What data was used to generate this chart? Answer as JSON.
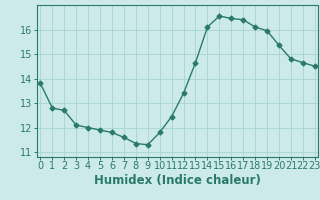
{
  "x": [
    0,
    1,
    2,
    3,
    4,
    5,
    6,
    7,
    8,
    9,
    10,
    11,
    12,
    13,
    14,
    15,
    16,
    17,
    18,
    19,
    20,
    21,
    22,
    23
  ],
  "y": [
    13.8,
    12.8,
    12.7,
    12.1,
    12.0,
    11.9,
    11.8,
    11.6,
    11.35,
    11.3,
    11.8,
    12.45,
    13.4,
    14.65,
    16.1,
    16.55,
    16.45,
    16.4,
    16.1,
    15.95,
    15.35,
    14.8,
    14.65,
    14.5
  ],
  "xlabel": "Humidex (Indice chaleur)",
  "ylabel": "",
  "title": "",
  "xlim": [
    -0.3,
    23.3
  ],
  "ylim": [
    10.8,
    17.0
  ],
  "yticks": [
    11,
    12,
    13,
    14,
    15,
    16
  ],
  "xticks": [
    0,
    1,
    2,
    3,
    4,
    5,
    6,
    7,
    8,
    9,
    10,
    11,
    12,
    13,
    14,
    15,
    16,
    17,
    18,
    19,
    20,
    21,
    22,
    23
  ],
  "line_color": "#2a7a6a",
  "marker": "D",
  "marker_size": 2.5,
  "bg_color": "#cceaea",
  "grid_color": "#a8d4d4",
  "xlabel_fontsize": 8.5,
  "tick_fontsize": 7,
  "line_width": 1.0
}
